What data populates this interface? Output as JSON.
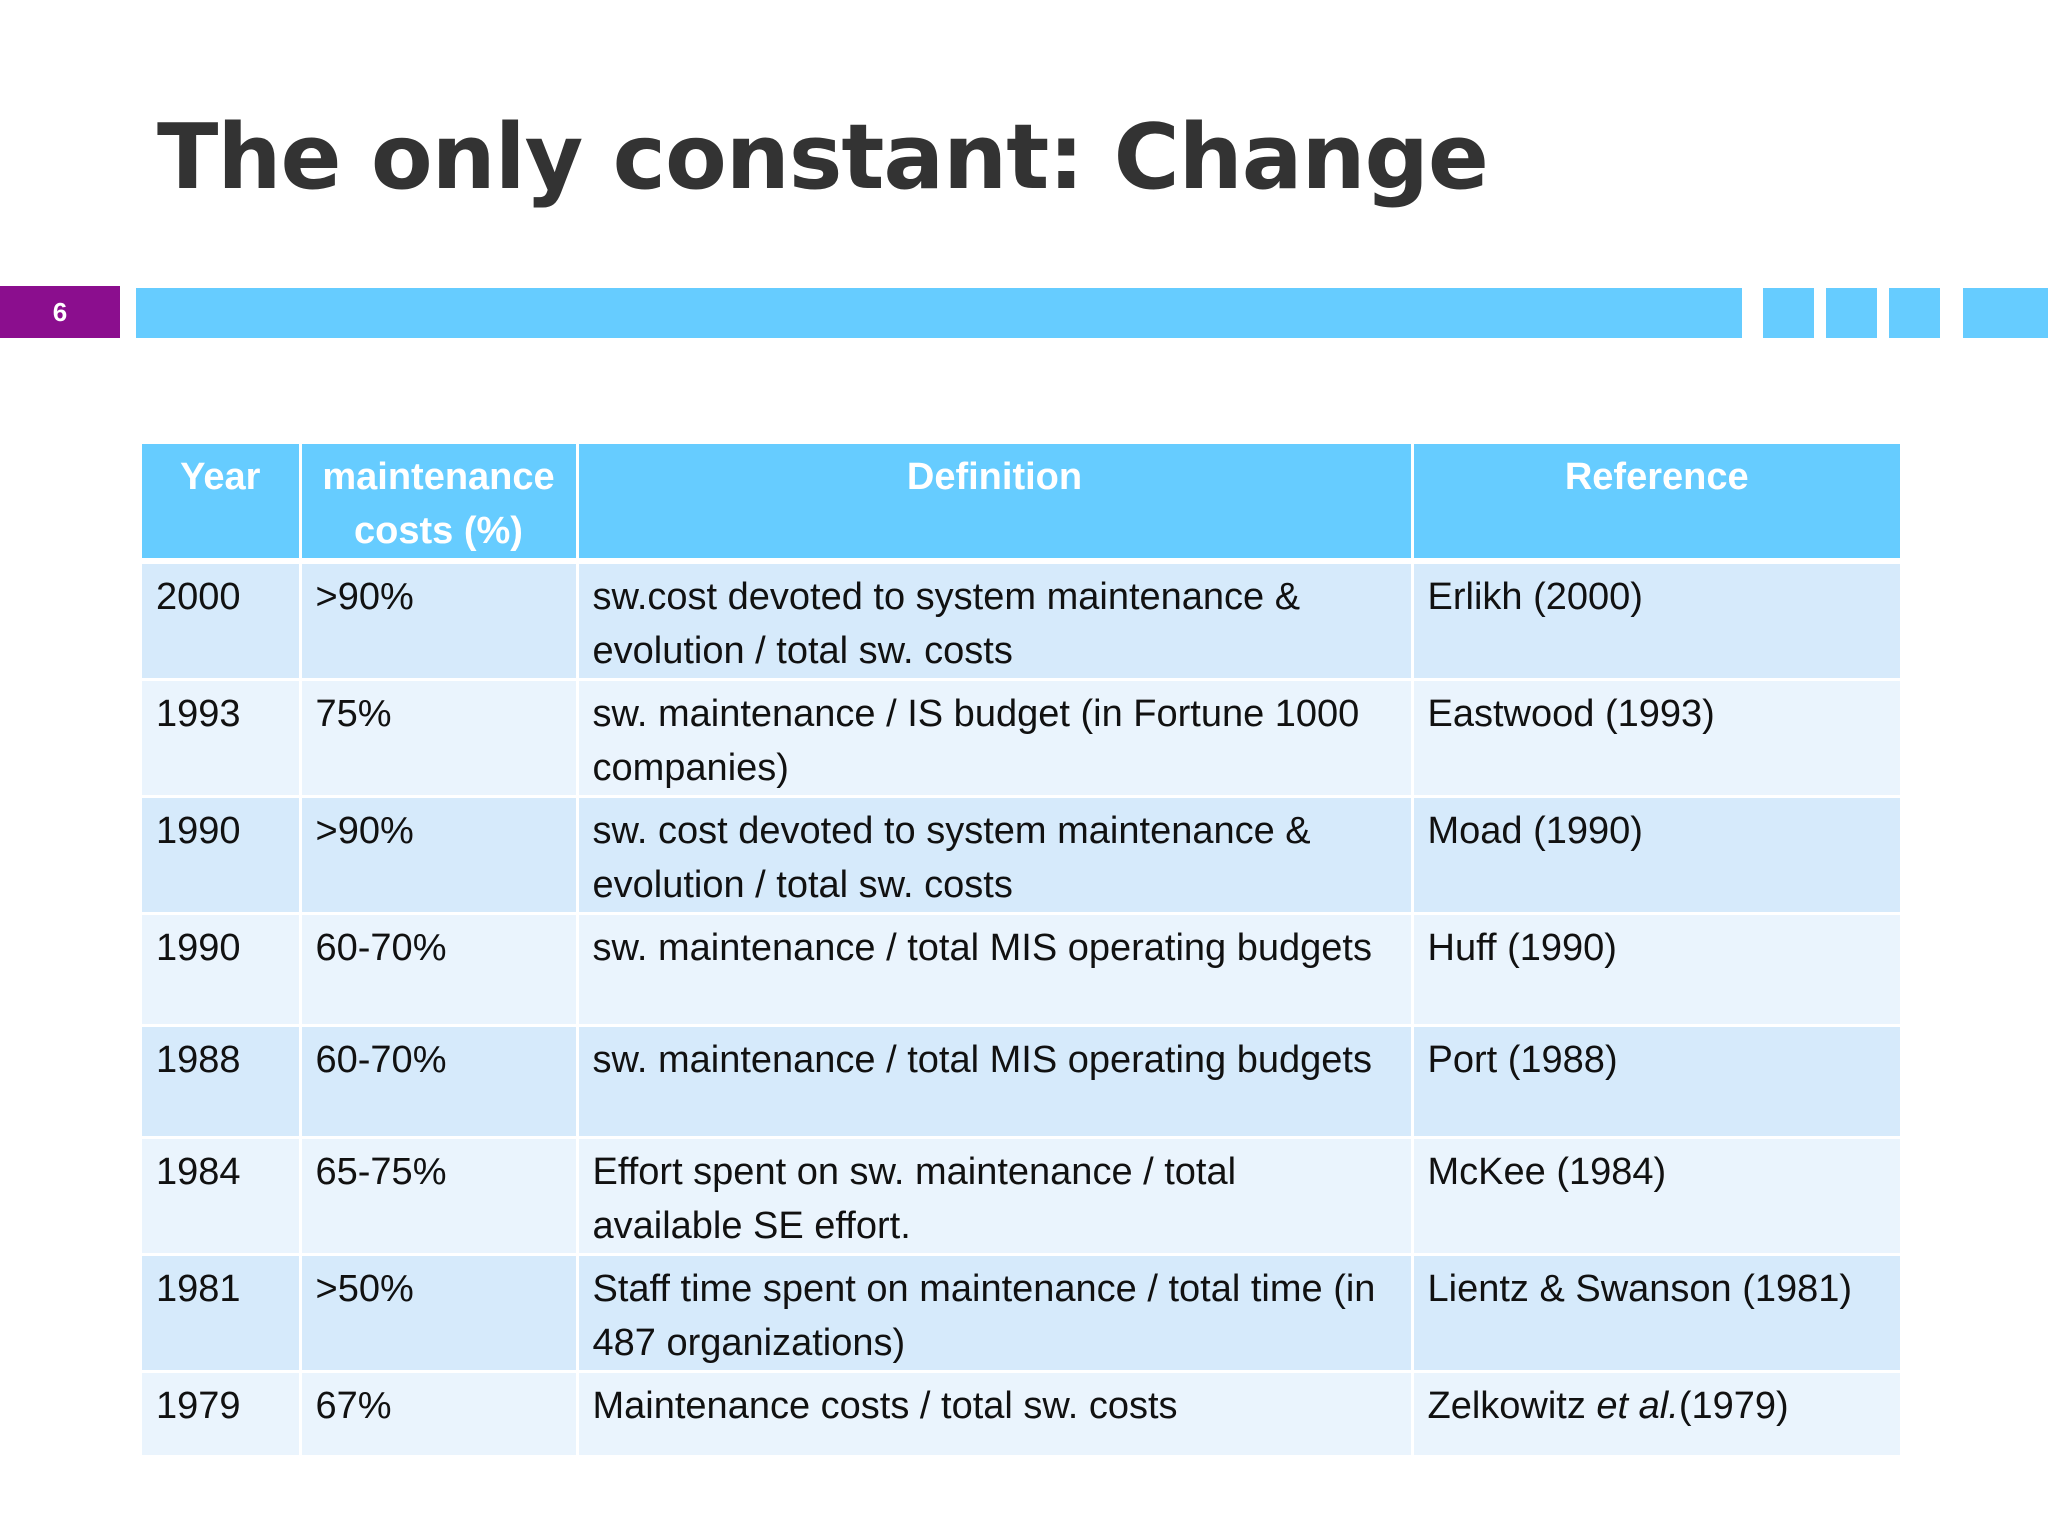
{
  "slide": {
    "title": "The only constant: Change",
    "number": "6"
  },
  "table": {
    "headers": [
      "Year",
      "maintenance costs (%)",
      "Definition",
      "Reference"
    ],
    "rows": [
      {
        "year": "2000",
        "cost": ">90%",
        "definition": "sw.cost devoted to system maintenance & evolution / total sw.  costs",
        "reference": "Erlikh (2000)"
      },
      {
        "year": "1993",
        "cost": "75%",
        "definition": "sw.  maintenance / IS budget (in Fortune 1000 companies)",
        "reference": "Eastwood (1993)"
      },
      {
        "year": "1990",
        "cost": ">90%",
        "definition": "sw.  cost devoted to system maintenance & evolution / total sw.  costs",
        "reference": "Moad (1990)"
      },
      {
        "year": "1990",
        "cost": "60-70%",
        "definition": "sw.  maintenance / total MIS operating budgets",
        "reference": "Huff (1990)"
      },
      {
        "year": "1988",
        "cost": "60-70%",
        "definition": "sw.  maintenance / total MIS operating budgets",
        "reference": "Port (1988)"
      },
      {
        "year": "1984",
        "cost": "65-75%",
        "definition": "Effort spent on sw.  maintenance / total available SE effort.",
        "reference": "McKee (1984)"
      },
      {
        "year": "1981",
        "cost": ">50%",
        "definition": "Staff time spent on maintenance / total time (in 487 organizations)",
        "reference": "Lientz & Swanson (1981)"
      },
      {
        "year": "1979",
        "cost": "67%",
        "definition": "Maintenance costs / total sw. costs",
        "reference_author": "Zelkowitz ",
        "reference_etal": "et al.",
        "reference_year": "(1979)"
      }
    ]
  },
  "colors": {
    "accent": "#66ccff",
    "slide_number_bg": "#8b0e8e",
    "row_dark": "#d6eafb",
    "row_light": "#eaf4fd",
    "title": "#333333"
  }
}
